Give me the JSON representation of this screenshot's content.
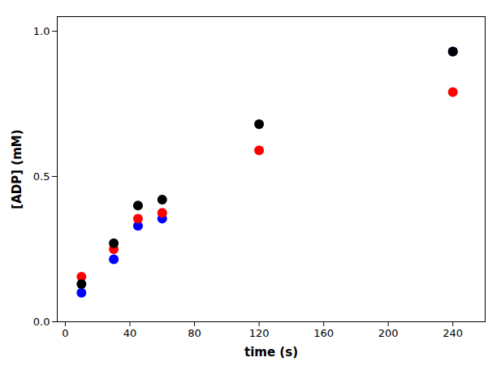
{
  "chart_data": {
    "type": "scatter",
    "xlabel": "time (s)",
    "ylabel": "[ADP] (mM)",
    "series": [
      {
        "color": "#000000",
        "x": [
          10,
          30,
          45,
          60,
          120,
          240
        ],
        "values": [
          0.13,
          0.27,
          0.4,
          0.42,
          0.68,
          0.93
        ]
      },
      {
        "color": "#ff0000",
        "x": [
          10,
          30,
          45,
          60,
          120,
          240
        ],
        "values": [
          0.155,
          0.25,
          0.355,
          0.375,
          0.59,
          0.79
        ]
      },
      {
        "color": "#0000ff",
        "x": [
          10,
          30,
          45,
          60,
          240
        ],
        "values": [
          0.1,
          0.215,
          0.33,
          0.355,
          0.93
        ]
      }
    ],
    "xlim": [
      -5,
      260
    ],
    "ylim": [
      0.0,
      1.05
    ],
    "xticks": [
      0,
      40,
      80,
      120,
      160,
      200,
      240
    ],
    "yticks": [
      {
        "value": 0,
        "label": "0.0"
      },
      0.5,
      {
        "value": 1,
        "label": "1.0"
      }
    ],
    "grid": false
  }
}
